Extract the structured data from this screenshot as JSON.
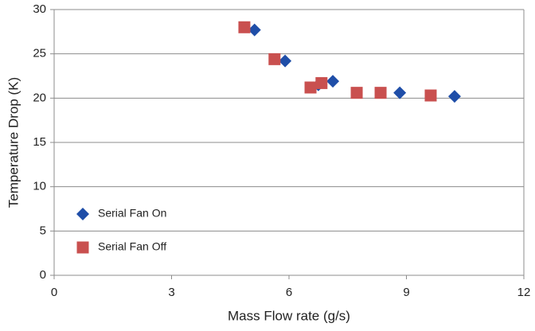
{
  "chart_data": {
    "type": "scatter",
    "x_label": "Mass Flow rate (g/s)",
    "y_label": "Temperature Drop (K)",
    "xlim": [
      0,
      12
    ],
    "xticks": [
      0,
      3,
      6,
      9,
      12
    ],
    "ylim": [
      0,
      30
    ],
    "yticks": [
      0,
      5,
      10,
      15,
      20,
      25,
      30
    ],
    "grid": true,
    "series": [
      {
        "name": "Serial Fan On",
        "color": "#1f4ea8",
        "marker": "diamond",
        "x": [
          5.12,
          5.9,
          6.75,
          7.12,
          8.83,
          10.23
        ],
        "values": [
          27.7,
          24.2,
          21.5,
          21.9,
          20.6,
          20.2
        ]
      },
      {
        "name": "Serial Fan Off",
        "color": "#c9504f",
        "marker": "square",
        "x": [
          4.86,
          5.63,
          6.55,
          6.83,
          7.73,
          8.34,
          9.62
        ],
        "values": [
          28.0,
          24.4,
          21.2,
          21.7,
          20.6,
          20.6,
          20.3
        ]
      }
    ]
  }
}
